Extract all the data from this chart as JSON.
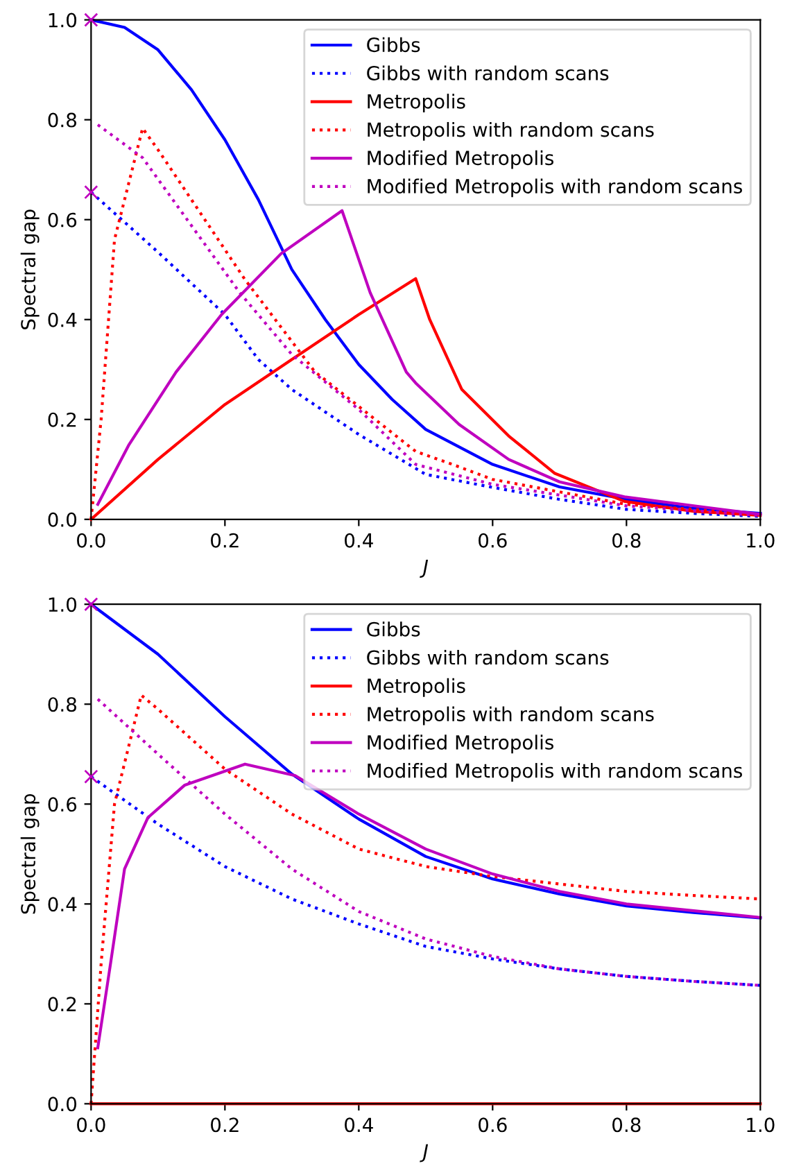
{
  "chart_data": [
    {
      "type": "line",
      "xlabel": "J",
      "ylabel": "Spectral gap",
      "xlim": [
        0,
        1
      ],
      "ylim": [
        0,
        1
      ],
      "xticks": [
        {
          "value": 0,
          "label": "0.0"
        },
        {
          "value": 0.2,
          "label": "0.2"
        },
        {
          "value": 0.4,
          "label": "0.4"
        },
        {
          "value": 0.6,
          "label": "0.6"
        },
        {
          "value": 0.8,
          "label": "0.8"
        },
        {
          "value": 1,
          "label": "1.0"
        }
      ],
      "yticks": [
        {
          "value": 0,
          "label": "0.0"
        },
        {
          "value": 0.2,
          "label": "0.2"
        },
        {
          "value": 0.4,
          "label": "0.4"
        },
        {
          "value": 0.6,
          "label": "0.6"
        },
        {
          "value": 0.8,
          "label": "0.8"
        },
        {
          "value": 1,
          "label": "1.0"
        }
      ],
      "grid": false,
      "legend": "top right",
      "series": [
        {
          "name": "Gibbs",
          "color": "#0000ff",
          "line_style": "solid",
          "x": [
            0,
            0.05,
            0.1,
            0.15,
            0.2,
            0.25,
            0.3,
            0.35,
            0.4,
            0.45,
            0.5,
            0.6,
            0.7,
            0.8,
            0.9,
            1.0
          ],
          "values": [
            1.0,
            0.985,
            0.94,
            0.86,
            0.76,
            0.64,
            0.5,
            0.4,
            0.31,
            0.24,
            0.18,
            0.11,
            0.065,
            0.04,
            0.022,
            0.012
          ]
        },
        {
          "name": "Gibbs with random scans",
          "color": "#0000ff",
          "line_style": "dotted",
          "x": [
            0,
            0.1,
            0.2,
            0.25,
            0.3,
            0.4,
            0.5,
            0.6,
            0.7,
            0.8,
            0.9,
            1.0
          ],
          "values": [
            0.655,
            0.535,
            0.41,
            0.32,
            0.26,
            0.17,
            0.09,
            0.064,
            0.04,
            0.02,
            0.012,
            0.006
          ]
        },
        {
          "name": "Metropolis",
          "color": "#ff0000",
          "line_style": "solid",
          "x": [
            0,
            0.1,
            0.2,
            0.3,
            0.4,
            0.485,
            0.506,
            0.554,
            0.624,
            0.693,
            0.797,
            0.9,
            1.0
          ],
          "values": [
            0,
            0.12,
            0.23,
            0.32,
            0.41,
            0.482,
            0.4,
            0.26,
            0.167,
            0.092,
            0.036,
            0.016,
            0.008
          ]
        },
        {
          "name": "Metropolis with random scans",
          "color": "#ff0000",
          "line_style": "dotted",
          "x": [
            0,
            0.015,
            0.035,
            0.077,
            0.1,
            0.23,
            0.334,
            0.485,
            0.54,
            0.6,
            0.8,
            1.0
          ],
          "values": [
            0,
            0.2,
            0.56,
            0.783,
            0.74,
            0.48,
            0.296,
            0.136,
            0.11,
            0.08,
            0.03,
            0.01
          ]
        },
        {
          "name": "Modified Metropolis",
          "color": "#bf00bf",
          "line_style": "solid",
          "x": [
            0.01,
            0.056,
            0.127,
            0.195,
            0.284,
            0.375,
            0.417,
            0.471,
            0.485,
            0.55,
            0.624,
            0.7,
            0.797,
            1.0
          ],
          "values": [
            0.03,
            0.148,
            0.295,
            0.41,
            0.532,
            0.618,
            0.454,
            0.295,
            0.273,
            0.19,
            0.12,
            0.075,
            0.045,
            0.01
          ]
        },
        {
          "name": "Modified Metropolis with random scans",
          "color": "#bf00bf",
          "line_style": "dotted",
          "x": [
            0.01,
            0.077,
            0.222,
            0.3,
            0.4,
            0.485,
            0.6,
            0.8,
            1.0
          ],
          "values": [
            0.79,
            0.724,
            0.454,
            0.33,
            0.22,
            0.11,
            0.07,
            0.027,
            0.008
          ]
        },
        {
          "type": "scatter",
          "color": "#bf00bf",
          "marker": "cross",
          "x": [
            0,
            0
          ],
          "values": [
            1.0,
            0.655
          ]
        }
      ]
    },
    {
      "type": "line",
      "xlabel": "J",
      "ylabel": "Spectral gap",
      "xlim": [
        0,
        1
      ],
      "ylim": [
        0,
        1
      ],
      "xticks": [
        {
          "value": 0,
          "label": "0.0"
        },
        {
          "value": 0.2,
          "label": "0.2"
        },
        {
          "value": 0.4,
          "label": "0.4"
        },
        {
          "value": 0.6,
          "label": "0.6"
        },
        {
          "value": 0.8,
          "label": "0.8"
        },
        {
          "value": 1,
          "label": "1.0"
        }
      ],
      "yticks": [
        {
          "value": 0,
          "label": "0.0"
        },
        {
          "value": 0.2,
          "label": "0.2"
        },
        {
          "value": 0.4,
          "label": "0.4"
        },
        {
          "value": 0.6,
          "label": "0.6"
        },
        {
          "value": 0.8,
          "label": "0.8"
        },
        {
          "value": 1,
          "label": "1.0"
        }
      ],
      "grid": false,
      "legend": "top right",
      "series": [
        {
          "name": "Gibbs",
          "color": "#0000ff",
          "line_style": "solid",
          "x": [
            0,
            0.1,
            0.2,
            0.3,
            0.4,
            0.5,
            0.6,
            0.7,
            0.8,
            0.9,
            1.0
          ],
          "values": [
            1.0,
            0.9,
            0.775,
            0.66,
            0.57,
            0.495,
            0.45,
            0.42,
            0.396,
            0.383,
            0.372
          ]
        },
        {
          "name": "Gibbs with random scans",
          "color": "#0000ff",
          "line_style": "dotted",
          "x": [
            0,
            0.1,
            0.2,
            0.3,
            0.4,
            0.5,
            0.6,
            0.7,
            0.8,
            0.9,
            1.0
          ],
          "values": [
            0.655,
            0.56,
            0.475,
            0.41,
            0.36,
            0.315,
            0.29,
            0.27,
            0.255,
            0.245,
            0.237
          ]
        },
        {
          "name": "Metropolis",
          "color": "#ff0000",
          "line_style": "solid",
          "x": [
            0,
            1.0
          ],
          "values": [
            0,
            0
          ]
        },
        {
          "name": "Metropolis with random scans",
          "color": "#ff0000",
          "line_style": "dotted",
          "x": [
            0,
            0.015,
            0.035,
            0.075,
            0.1,
            0.2,
            0.3,
            0.4,
            0.5,
            0.6,
            0.7,
            0.8,
            0.9,
            1.0
          ],
          "values": [
            0,
            0.28,
            0.6,
            0.818,
            0.79,
            0.67,
            0.58,
            0.51,
            0.475,
            0.455,
            0.44,
            0.425,
            0.417,
            0.41
          ]
        },
        {
          "name": "Modified Metropolis",
          "color": "#bf00bf",
          "line_style": "solid",
          "x": [
            0.01,
            0.029,
            0.05,
            0.085,
            0.14,
            0.23,
            0.305,
            0.4,
            0.5,
            0.6,
            0.7,
            0.8,
            1.0
          ],
          "values": [
            0.112,
            0.28,
            0.47,
            0.573,
            0.638,
            0.68,
            0.657,
            0.58,
            0.51,
            0.46,
            0.425,
            0.4,
            0.373
          ]
        },
        {
          "name": "Modified Metropolis with random scans",
          "color": "#bf00bf",
          "line_style": "dotted",
          "x": [
            0.01,
            0.1,
            0.2,
            0.3,
            0.4,
            0.5,
            0.6,
            0.7,
            0.8,
            0.9,
            1.0
          ],
          "values": [
            0.81,
            0.7,
            0.58,
            0.47,
            0.385,
            0.33,
            0.295,
            0.27,
            0.255,
            0.245,
            0.237
          ]
        },
        {
          "type": "scatter",
          "color": "#bf00bf",
          "marker": "cross",
          "x": [
            0,
            0
          ],
          "values": [
            1.0,
            0.655
          ]
        }
      ]
    }
  ]
}
